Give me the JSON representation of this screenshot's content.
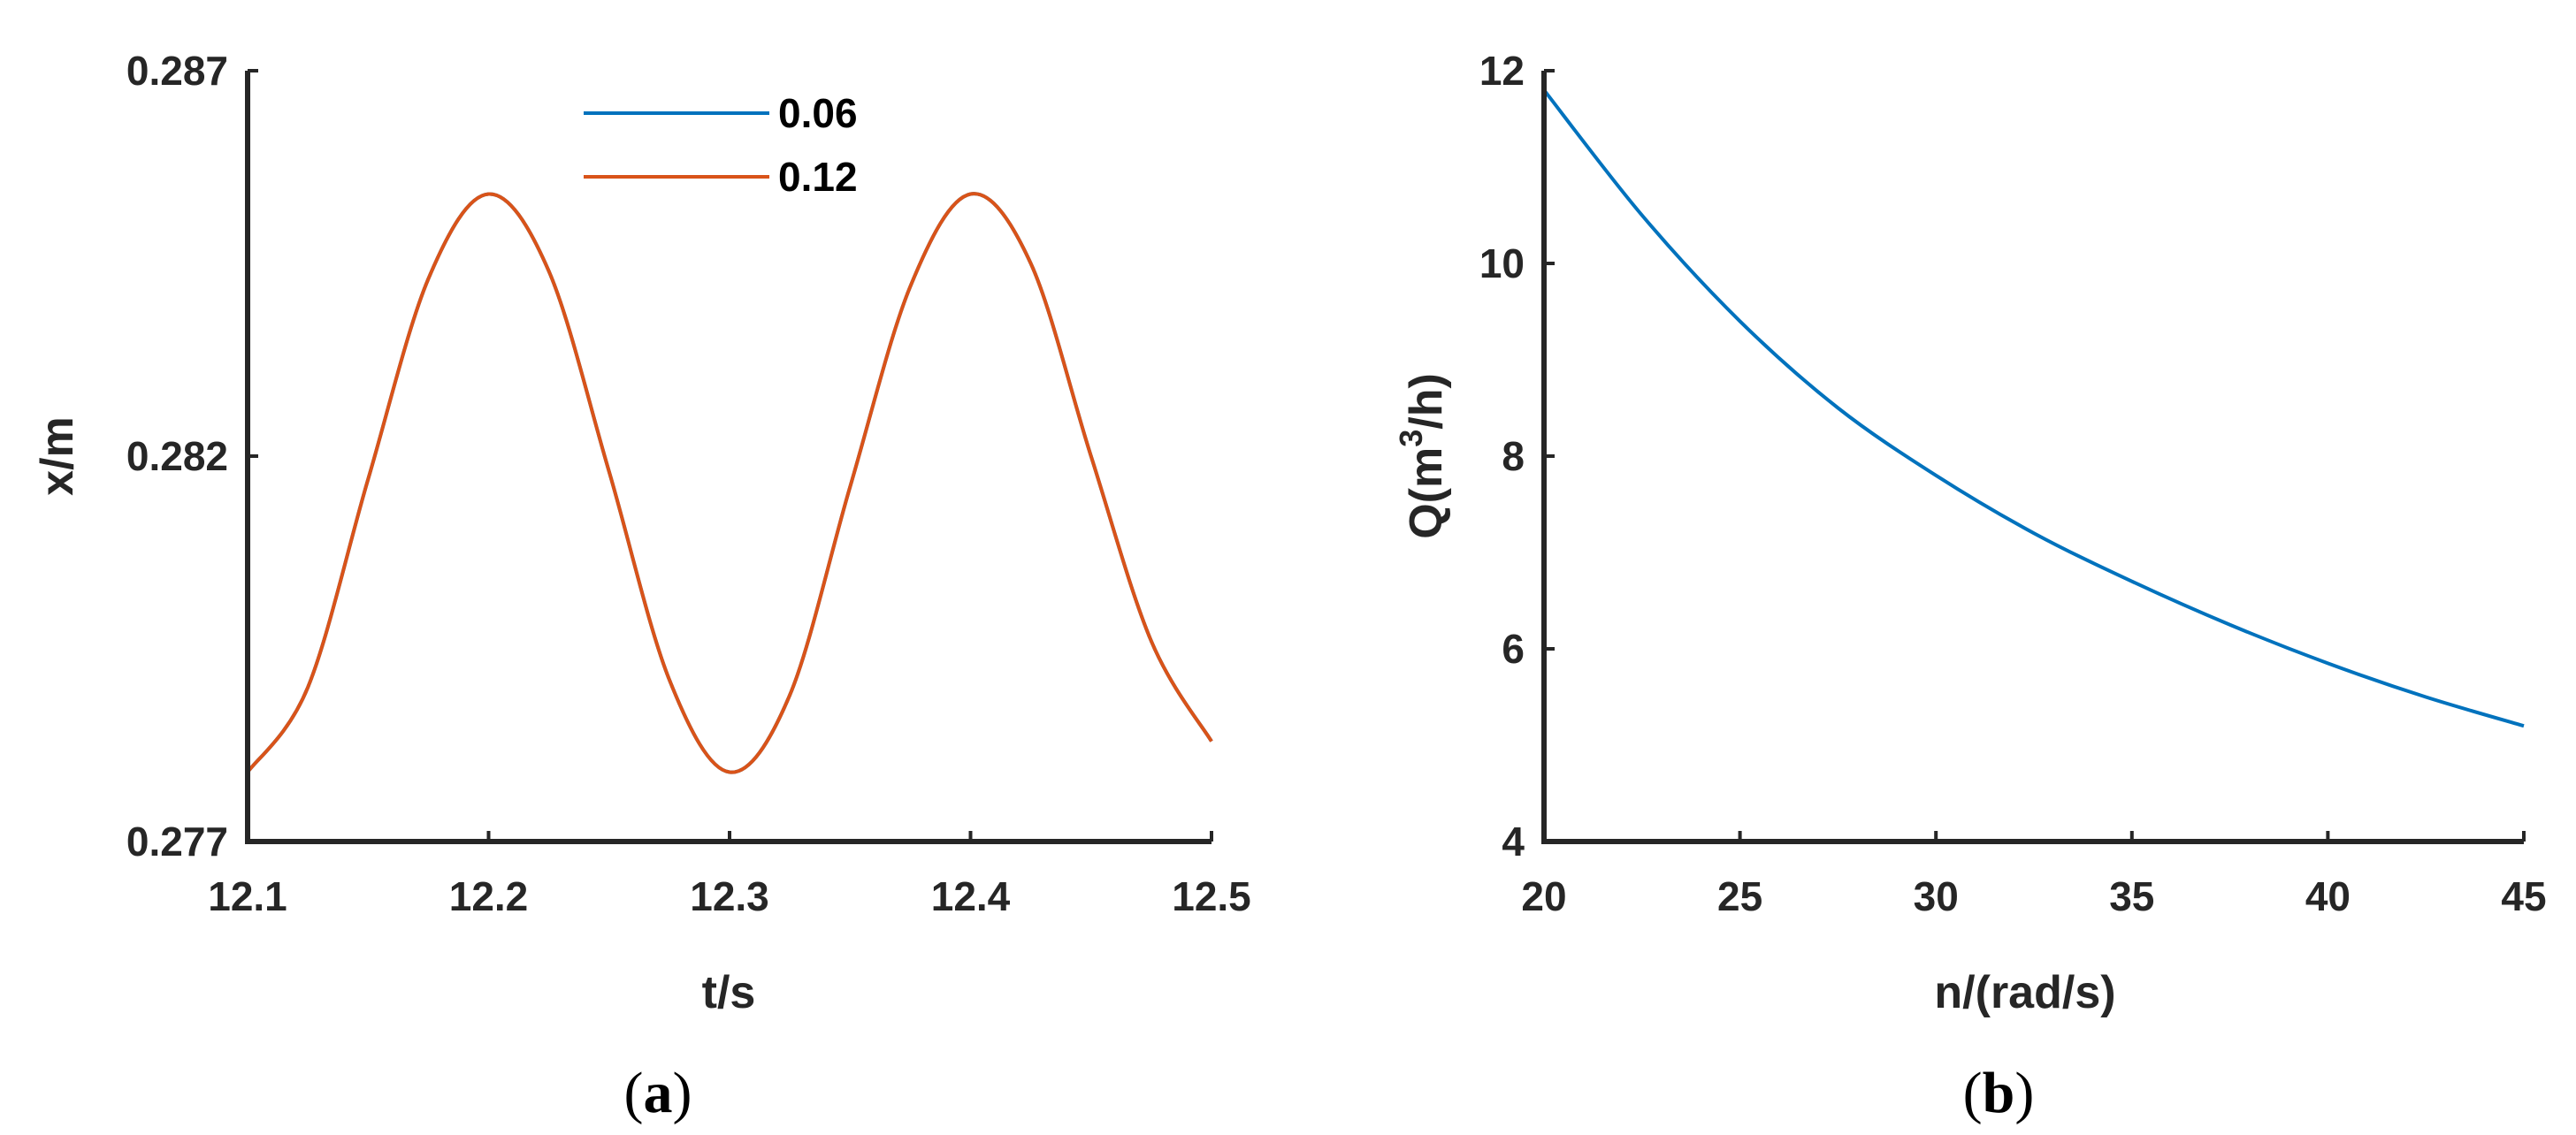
{
  "chart_data": [
    {
      "type": "line",
      "panel_label": "a",
      "xlabel": "t/s",
      "ylabel": "x/m",
      "xlim": [
        12.1,
        12.5
      ],
      "ylim": [
        0.277,
        0.287
      ],
      "xticks": [
        "12.1",
        "12.2",
        "12.3",
        "12.4",
        "12.5"
      ],
      "yticks": [
        "0.277",
        "0.282",
        "0.287"
      ],
      "legend_position": "top-center",
      "series": [
        {
          "name": "0.06",
          "color": "#0072bd",
          "x": [
            12.1,
            12.125,
            12.15,
            12.175,
            12.2,
            12.225,
            12.25,
            12.275,
            12.3,
            12.325,
            12.35,
            12.375,
            12.4,
            12.425,
            12.45,
            12.475,
            12.5
          ],
          "y": [
            0.2779,
            0.279,
            0.2817,
            0.2843,
            0.2854,
            0.2844,
            0.2818,
            0.2791,
            0.2779,
            0.2789,
            0.2816,
            0.2842,
            0.2854,
            0.2845,
            0.282,
            0.2796,
            0.2783
          ]
        },
        {
          "name": "0.12",
          "color": "#d95319",
          "x": [
            12.1,
            12.125,
            12.15,
            12.175,
            12.2,
            12.225,
            12.25,
            12.275,
            12.3,
            12.325,
            12.35,
            12.375,
            12.4,
            12.425,
            12.45,
            12.475,
            12.5
          ],
          "y": [
            0.2779,
            0.279,
            0.2817,
            0.2843,
            0.2854,
            0.2844,
            0.2818,
            0.2791,
            0.2779,
            0.2789,
            0.2816,
            0.2842,
            0.2854,
            0.2845,
            0.282,
            0.2796,
            0.2783
          ]
        }
      ]
    },
    {
      "type": "line",
      "panel_label": "b",
      "xlabel": "n/(rad/s)",
      "ylabel": "Q(m3/h)",
      "ylabel_parts": [
        "Q(m",
        "3",
        "/h)"
      ],
      "xlim": [
        20,
        45
      ],
      "ylim": [
        4,
        12
      ],
      "xticks": [
        "20",
        "25",
        "30",
        "35",
        "40",
        "45"
      ],
      "yticks": [
        "4",
        "6",
        "8",
        "10",
        "12"
      ],
      "series": [
        {
          "color": "#0072bd",
          "x": [
            20,
            22.5,
            25,
            27.5,
            30,
            32.5,
            35,
            37.5,
            40,
            42.5,
            45
          ],
          "y": [
            11.8,
            10.5,
            9.4,
            8.5,
            7.8,
            7.2,
            6.7,
            6.25,
            5.85,
            5.5,
            5.2
          ]
        }
      ]
    }
  ]
}
